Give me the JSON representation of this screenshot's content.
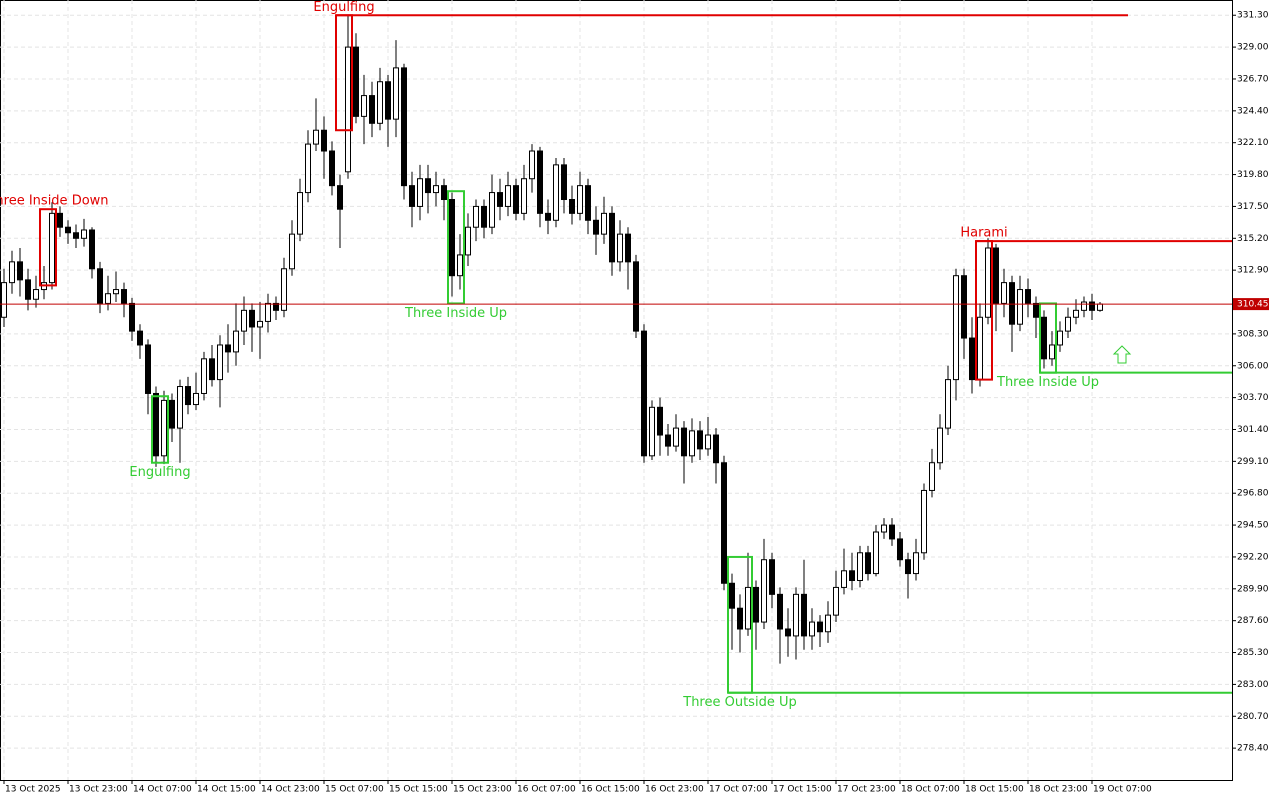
{
  "chart_data": {
    "type": "candlestick",
    "xlim": [
      -0.5,
      153.5
    ],
    "ylim": [
      276.1,
      332.4
    ],
    "xticks": [
      {
        "value": 0,
        "label": "13 Oct 2025"
      },
      {
        "value": 8,
        "label": "13 Oct 23:00"
      },
      {
        "value": 16,
        "label": "14 Oct 07:00"
      },
      {
        "value": 24,
        "label": "14 Oct 15:00"
      },
      {
        "value": 32,
        "label": "14 Oct 23:00"
      },
      {
        "value": 40,
        "label": "15 Oct 07:00"
      },
      {
        "value": 48,
        "label": "15 Oct 15:00"
      },
      {
        "value": 56,
        "label": "15 Oct 23:00"
      },
      {
        "value": 64,
        "label": "16 Oct 07:00"
      },
      {
        "value": 72,
        "label": "16 Oct 15:00"
      },
      {
        "value": 80,
        "label": "16 Oct 23:00"
      },
      {
        "value": 88,
        "label": "17 Oct 07:00"
      },
      {
        "value": 96,
        "label": "17 Oct 15:00"
      },
      {
        "value": 104,
        "label": "17 Oct 23:00"
      },
      {
        "value": 112,
        "label": "18 Oct 07:00"
      },
      {
        "value": 120,
        "label": "18 Oct 15:00"
      },
      {
        "value": 128,
        "label": "18 Oct 23:00"
      },
      {
        "value": 136,
        "label": "19 Oct 07:00"
      }
    ],
    "yticks": [
      {
        "value": 331.3,
        "label": "331.30"
      },
      {
        "value": 329,
        "label": "329.00"
      },
      {
        "value": 326.7,
        "label": "326.70"
      },
      {
        "value": 324.4,
        "label": "324.40"
      },
      {
        "value": 322.1,
        "label": "322.10"
      },
      {
        "value": 319.8,
        "label": "319.80"
      },
      {
        "value": 317.5,
        "label": "317.50"
      },
      {
        "value": 315.2,
        "label": "315.20"
      },
      {
        "value": 312.9,
        "label": "312.90"
      },
      {
        "value": 308.3,
        "label": "308.30"
      },
      {
        "value": 306,
        "label": "306.00"
      },
      {
        "value": 303.7,
        "label": "303.70"
      },
      {
        "value": 301.4,
        "label": "301.40"
      },
      {
        "value": 299.1,
        "label": "299.10"
      },
      {
        "value": 296.8,
        "label": "296.80"
      },
      {
        "value": 294.5,
        "label": "294.50"
      },
      {
        "value": 292.2,
        "label": "292.20"
      },
      {
        "value": 289.9,
        "label": "289.90"
      },
      {
        "value": 287.6,
        "label": "287.60"
      },
      {
        "value": 285.3,
        "label": "285.30"
      },
      {
        "value": 283,
        "label": "283.00"
      },
      {
        "value": 280.7,
        "label": "280.70"
      },
      {
        "value": 278.4,
        "label": "278.40"
      }
    ],
    "grid": true,
    "up_color": "#ffffff",
    "down_color": "#000000",
    "current_price": 310.45,
    "current_price_color": "#c00000",
    "ohlc": [
      [
        309.5,
        313.0,
        308.8,
        312.0
      ],
      [
        312.0,
        314.3,
        311.2,
        313.5
      ],
      [
        313.5,
        314.5,
        311.0,
        312.2
      ],
      [
        312.2,
        313.0,
        310.0,
        310.8
      ],
      [
        310.8,
        312.5,
        310.2,
        311.5
      ],
      [
        311.5,
        313.2,
        310.8,
        312.0
      ],
      [
        312.0,
        317.8,
        311.5,
        317.0
      ],
      [
        317.0,
        317.5,
        315.3,
        316.0
      ],
      [
        316.0,
        316.5,
        314.8,
        315.6
      ],
      [
        315.6,
        316.2,
        314.5,
        315.2
      ],
      [
        315.2,
        316.6,
        314.6,
        315.8
      ],
      [
        315.8,
        316.0,
        312.3,
        313.0
      ],
      [
        313.0,
        313.5,
        309.8,
        310.5
      ],
      [
        310.5,
        312.5,
        310.0,
        311.2
      ],
      [
        311.2,
        312.8,
        310.6,
        311.5
      ],
      [
        311.5,
        312.0,
        309.5,
        310.5
      ],
      [
        310.5,
        310.9,
        307.8,
        308.5
      ],
      [
        308.5,
        309.0,
        306.5,
        307.5
      ],
      [
        307.5,
        307.9,
        302.5,
        304.0
      ],
      [
        304.0,
        304.5,
        298.7,
        299.5
      ],
      [
        299.5,
        304.2,
        298.9,
        303.5
      ],
      [
        303.5,
        304.0,
        300.5,
        301.5
      ],
      [
        301.5,
        305.0,
        299.0,
        304.5
      ],
      [
        304.5,
        305.2,
        302.5,
        303.2
      ],
      [
        303.2,
        305.5,
        302.8,
        304.0
      ],
      [
        304.0,
        307.0,
        303.5,
        306.5
      ],
      [
        306.5,
        307.5,
        304.5,
        305.0
      ],
      [
        305.0,
        308.2,
        303.0,
        307.5
      ],
      [
        307.5,
        309.0,
        305.5,
        307.0
      ],
      [
        307.0,
        310.5,
        306.0,
        308.5
      ],
      [
        308.5,
        311.0,
        307.5,
        310.0
      ],
      [
        310.0,
        310.5,
        307.0,
        308.8
      ],
      [
        308.8,
        310.6,
        306.5,
        309.2
      ],
      [
        309.2,
        311.2,
        308.4,
        310.5
      ],
      [
        310.5,
        311.0,
        309.3,
        310.0
      ],
      [
        310.0,
        313.8,
        309.5,
        313.0
      ],
      [
        313.0,
        316.5,
        312.5,
        315.5
      ],
      [
        315.5,
        319.5,
        315.0,
        318.5
      ],
      [
        318.5,
        323.0,
        317.8,
        322.0
      ],
      [
        322.0,
        325.3,
        321.5,
        323.0
      ],
      [
        323.0,
        324.0,
        319.5,
        321.5
      ],
      [
        321.5,
        322.2,
        318.3,
        319.0
      ],
      [
        319.0,
        319.8,
        314.5,
        317.3
      ],
      [
        320.0,
        331.3,
        319.5,
        329.0
      ],
      [
        329.0,
        330.0,
        323.5,
        324.0
      ],
      [
        324.0,
        327.0,
        322.0,
        325.5
      ],
      [
        325.5,
        326.5,
        322.5,
        323.5
      ],
      [
        323.5,
        327.5,
        323.0,
        326.5
      ],
      [
        326.5,
        327.0,
        321.8,
        323.8
      ],
      [
        323.8,
        329.5,
        322.5,
        327.5
      ],
      [
        327.5,
        327.8,
        318.0,
        319.0
      ],
      [
        319.0,
        320.0,
        316.0,
        317.5
      ],
      [
        317.5,
        320.5,
        316.5,
        319.5
      ],
      [
        319.5,
        320.5,
        317.0,
        318.5
      ],
      [
        318.5,
        320.0,
        317.5,
        319.0
      ],
      [
        319.0,
        319.5,
        316.5,
        318.0
      ],
      [
        318.0,
        318.5,
        311.0,
        312.5
      ],
      [
        312.5,
        315.5,
        311.5,
        314.0
      ],
      [
        314.0,
        317.0,
        313.2,
        316.0
      ],
      [
        316.0,
        318.0,
        315.0,
        317.5
      ],
      [
        317.5,
        318.0,
        315.2,
        316.0
      ],
      [
        316.0,
        319.8,
        315.5,
        318.5
      ],
      [
        318.5,
        319.5,
        316.5,
        317.5
      ],
      [
        317.5,
        320.0,
        316.8,
        319.0
      ],
      [
        319.0,
        319.5,
        316.5,
        317.0
      ],
      [
        317.0,
        320.5,
        316.5,
        319.5
      ],
      [
        319.5,
        322.0,
        318.5,
        321.5
      ],
      [
        321.5,
        321.8,
        316.0,
        317.0
      ],
      [
        317.0,
        318.0,
        315.5,
        316.5
      ],
      [
        316.5,
        321.0,
        316.0,
        320.5
      ],
      [
        320.5,
        321.0,
        317.0,
        318.0
      ],
      [
        318.0,
        319.0,
        316.2,
        317.0
      ],
      [
        317.0,
        320.0,
        316.5,
        319.0
      ],
      [
        319.0,
        319.5,
        315.5,
        316.5
      ],
      [
        316.5,
        317.5,
        314.0,
        315.5
      ],
      [
        315.5,
        318.2,
        314.8,
        317.0
      ],
      [
        317.0,
        317.5,
        312.5,
        313.5
      ],
      [
        313.5,
        316.5,
        312.8,
        315.5
      ],
      [
        315.5,
        316.0,
        311.5,
        313.5
      ],
      [
        313.5,
        314.0,
        308.0,
        308.5
      ],
      [
        308.5,
        309.0,
        299.0,
        299.5
      ],
      [
        299.5,
        303.5,
        299.2,
        303.0
      ],
      [
        303.0,
        303.7,
        299.5,
        301.0
      ],
      [
        301.0,
        301.8,
        299.5,
        300.2
      ],
      [
        300.2,
        302.5,
        299.8,
        301.5
      ],
      [
        301.5,
        302.0,
        297.5,
        299.5
      ],
      [
        299.5,
        302.2,
        299.0,
        301.3
      ],
      [
        301.3,
        302.0,
        299.2,
        300.0
      ],
      [
        300.0,
        302.3,
        299.5,
        301.0
      ],
      [
        301.0,
        301.5,
        297.5,
        299.0
      ],
      [
        299.0,
        299.5,
        289.8,
        290.3
      ],
      [
        290.3,
        291.0,
        285.5,
        288.5
      ],
      [
        288.5,
        289.5,
        285.3,
        287.0
      ],
      [
        287.0,
        292.5,
        286.5,
        290.0
      ],
      [
        290.0,
        290.5,
        285.5,
        287.5
      ],
      [
        287.5,
        293.5,
        287.0,
        292.0
      ],
      [
        292.0,
        292.5,
        288.5,
        289.5
      ],
      [
        289.5,
        290.0,
        284.5,
        287.0
      ],
      [
        287.0,
        288.5,
        285.0,
        286.5
      ],
      [
        286.5,
        290.0,
        284.8,
        289.5
      ],
      [
        289.5,
        292.0,
        285.5,
        286.5
      ],
      [
        286.5,
        288.5,
        285.5,
        287.5
      ],
      [
        287.5,
        288.0,
        285.7,
        286.8
      ],
      [
        286.8,
        289.0,
        286.0,
        288.0
      ],
      [
        288.0,
        291.2,
        287.5,
        290.0
      ],
      [
        290.0,
        292.8,
        289.5,
        291.2
      ],
      [
        291.2,
        292.5,
        289.8,
        290.5
      ],
      [
        290.5,
        293.0,
        290.0,
        292.5
      ],
      [
        292.5,
        293.0,
        290.5,
        291.0
      ],
      [
        291.0,
        294.5,
        290.8,
        294.0
      ],
      [
        294.0,
        295.0,
        293.5,
        294.5
      ],
      [
        294.5,
        295.0,
        293.0,
        293.5
      ],
      [
        293.5,
        294.0,
        291.5,
        292.0
      ],
      [
        292.0,
        292.5,
        289.2,
        291.0
      ],
      [
        291.0,
        293.5,
        290.5,
        292.5
      ],
      [
        292.5,
        297.5,
        292.0,
        297.0
      ],
      [
        297.0,
        300.0,
        296.5,
        299.0
      ],
      [
        299.0,
        302.5,
        298.5,
        301.5
      ],
      [
        301.5,
        306.0,
        301.0,
        305.0
      ],
      [
        305.0,
        313.0,
        303.5,
        312.5
      ],
      [
        312.5,
        313.0,
        306.5,
        308.0
      ],
      [
        308.0,
        309.5,
        304.0,
        305.0
      ],
      [
        305.0,
        310.5,
        304.5,
        309.5
      ],
      [
        309.5,
        315.2,
        309.0,
        314.5
      ],
      [
        314.5,
        314.8,
        308.5,
        310.5
      ],
      [
        310.5,
        313.0,
        309.5,
        312.0
      ],
      [
        312.0,
        312.5,
        307.0,
        309.0
      ],
      [
        309.0,
        312.5,
        308.5,
        311.5
      ],
      [
        311.5,
        312.3,
        309.5,
        310.5
      ],
      [
        310.5,
        311.0,
        308.0,
        309.5
      ],
      [
        309.5,
        310.0,
        305.8,
        306.5
      ],
      [
        306.5,
        308.5,
        306.0,
        307.5
      ],
      [
        307.5,
        309.2,
        307.0,
        308.5
      ],
      [
        308.5,
        310.2,
        308.0,
        309.5
      ],
      [
        309.5,
        310.8,
        309.0,
        310.0
      ],
      [
        310.0,
        311.0,
        309.5,
        310.6
      ],
      [
        310.6,
        311.2,
        309.3,
        310.0
      ],
      [
        310.0,
        310.6,
        309.9,
        310.45
      ]
    ],
    "patterns": [
      {
        "label": "Three Inside Down",
        "color": "#e00000",
        "from": 5,
        "to": 6,
        "high": 317.3,
        "low": 311.8,
        "side": "above"
      },
      {
        "label": "Engulfing",
        "color": "#33cc33",
        "from": 19,
        "to": 20,
        "high": 303.8,
        "low": 299.0,
        "side": "below"
      },
      {
        "label": "Engulfing",
        "color": "#e00000",
        "from": 42,
        "to": 43,
        "high": 331.3,
        "low": 323.0,
        "side": "above",
        "level": 331.3,
        "level_to": 140.5
      },
      {
        "label": "Three Inside Up",
        "color": "#33cc33",
        "from": 56,
        "to": 57,
        "high": 318.6,
        "low": 310.5,
        "side": "below"
      },
      {
        "label": "Three Outside Up",
        "color": "#33cc33",
        "from": 91,
        "to": 93,
        "high": 292.2,
        "low": 282.4,
        "side": "below",
        "level": 282.4,
        "level_to": 153.5
      },
      {
        "label": "Harami",
        "color": "#e00000",
        "from": 122,
        "to": 123,
        "high": 315.0,
        "low": 305.0,
        "side": "above",
        "level": 315.0,
        "level_to": 153.5
      },
      {
        "label": "Three Inside Up",
        "color": "#33cc33",
        "from": 130,
        "to": 131,
        "high": 310.5,
        "low": 305.5,
        "side": "below",
        "level": 305.5,
        "level_to": 153.5
      }
    ]
  }
}
